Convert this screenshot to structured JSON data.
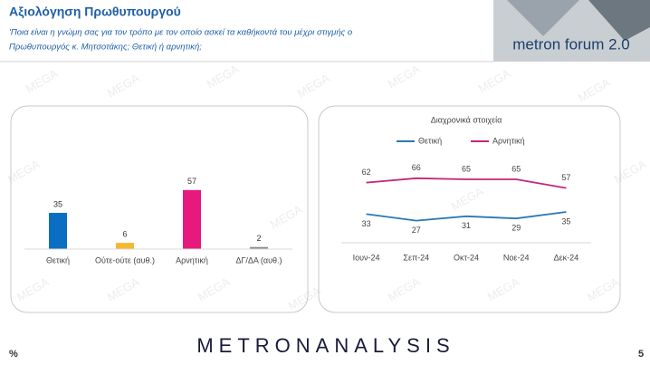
{
  "header": {
    "title": "Αξιολόγηση Πρωθυπουργού",
    "question": [
      "'Ποια είναι η γνώμη σας για τον τρόπο με τον οποίο ασκεί τα καθήκοντά του μέχρι στιγμής ο",
      "Πρωθυπουργός κ. Μητσοτάκης; Θετική ή αρνητική;"
    ]
  },
  "logo": "metron forum 2.0",
  "watermark": "MEGA",
  "footer": {
    "brand": "METRONANALYSIS",
    "unit": "%",
    "page": "5"
  },
  "chart_data": [
    {
      "type": "bar",
      "categories": [
        "Θετική",
        "Ούτε-ούτε (αυθ.)",
        "Αρνητική",
        "ΔΓ/ΔΑ (αυθ.)"
      ],
      "values": [
        35,
        6,
        57,
        2
      ],
      "colors": [
        "#0a6fc2",
        "#f5b833",
        "#e8197c",
        "#8c8c8c"
      ],
      "ylim": [
        0,
        70
      ]
    },
    {
      "type": "line",
      "title": "Διαχρονικά στοιχεία",
      "categories": [
        "Ιουν-24",
        "Σεπ-24",
        "Οκτ-24",
        "Νοε-24",
        "Δεκ-24"
      ],
      "series": [
        {
          "name": "Θετική",
          "color": "#2a78b5",
          "values": [
            33,
            27,
            31,
            29,
            35
          ]
        },
        {
          "name": "Αρνητική",
          "color": "#c2267b",
          "values": [
            62,
            66,
            65,
            65,
            57
          ]
        }
      ],
      "ylim": [
        5,
        85
      ]
    }
  ]
}
